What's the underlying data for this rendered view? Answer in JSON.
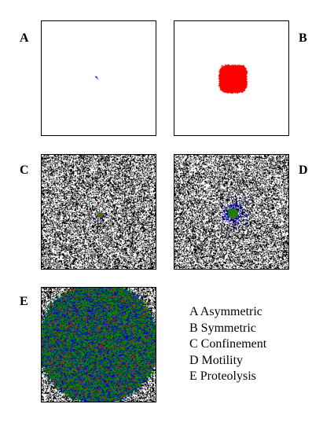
{
  "panels": [
    {
      "id": "A",
      "label": "A",
      "description": "Asymmetric"
    },
    {
      "id": "B",
      "label": "B",
      "description": "Symmetric"
    },
    {
      "id": "C",
      "label": "C",
      "description": "Confinement"
    },
    {
      "id": "D",
      "label": "D",
      "description": "Motility"
    },
    {
      "id": "E",
      "label": "E",
      "description": "Proteolysis"
    }
  ],
  "legend": [
    "A Asymmetric",
    "B Symmetric",
    "C Confinement",
    "D Motility",
    "E Proteolysis"
  ],
  "colors": {
    "matrix": "#000000",
    "blue_cells": "#0000cc",
    "red_cells": "#ff0000",
    "green_cells": "#008800",
    "brown_cells": "#8b5a00"
  }
}
